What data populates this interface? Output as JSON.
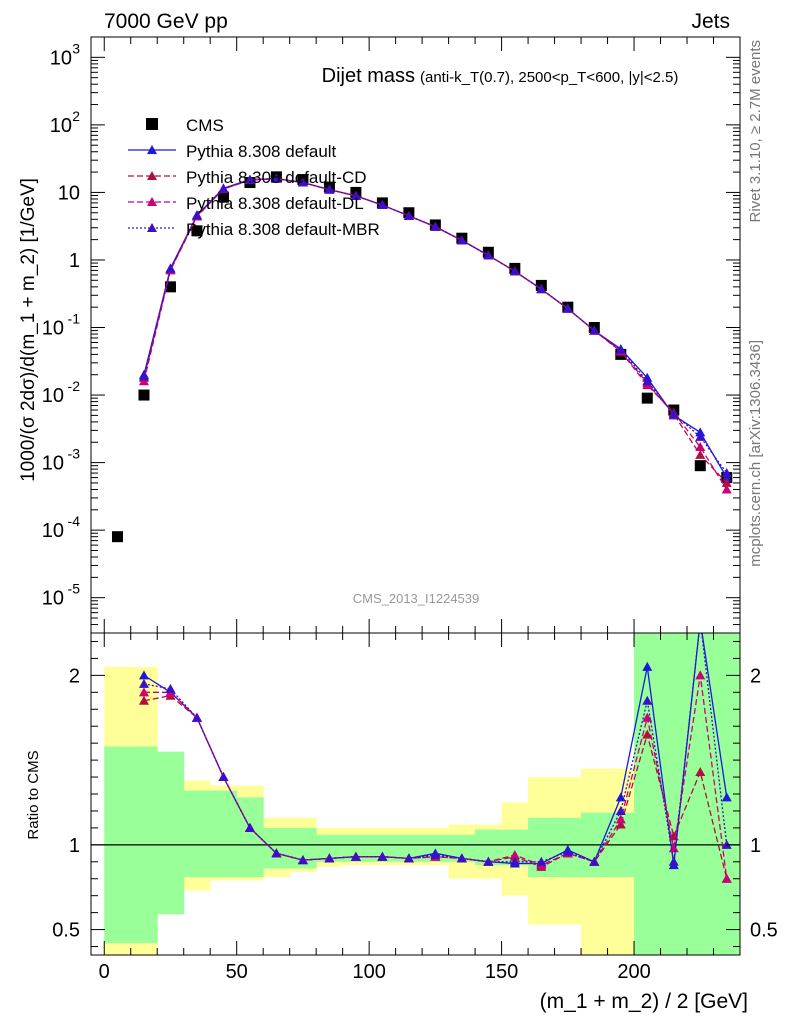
{
  "header": {
    "left": "7000 GeV pp",
    "right": "Jets"
  },
  "side_labels": {
    "rivet": "Rivet 3.1.10, ≥ 2.7M events",
    "mcplots": "mcplots.cern.ch [arXiv:1306.3436]"
  },
  "colors": {
    "cms": "#000000",
    "pythia_default": "#1a1adb",
    "pythia_cd": "#b0103c",
    "pythia_dl": "#cc0077",
    "pythia_mbr": "#3a10c8",
    "band_inner": "#99ff99",
    "band_outer": "#ffff99"
  },
  "chart_data": [
    {
      "type": "scatter",
      "title": "Dijet mass",
      "subtitle": "(anti-k_T(0.7), 2500<p_T<600, |y|<2.5)",
      "ylabel": "1000/(σ 2dσ)/d(m_1 + m_2) [1/GeV]",
      "watermark": "CMS_2013_I1224539",
      "yscale": "log",
      "ylim": [
        3e-06,
        2000
      ],
      "xlim": [
        -5,
        240
      ],
      "legend_position": "top-left",
      "yticks": [
        {
          "v": 1e-05,
          "base": "10",
          "exp": "-5"
        },
        {
          "v": 0.0001,
          "base": "10",
          "exp": "-4"
        },
        {
          "v": 0.001,
          "base": "10",
          "exp": "-3"
        },
        {
          "v": 0.01,
          "base": "10",
          "exp": "-2"
        },
        {
          "v": 0.1,
          "base": "10",
          "exp": "-1"
        },
        {
          "v": 1,
          "base": "1",
          "exp": ""
        },
        {
          "v": 10,
          "base": "10",
          "exp": ""
        },
        {
          "v": 100,
          "base": "10",
          "exp": "2"
        },
        {
          "v": 1000,
          "base": "10",
          "exp": "3"
        }
      ],
      "series": [
        {
          "name": "CMS",
          "style": "data",
          "x": [
            5,
            15,
            25,
            35,
            45,
            55,
            65,
            75,
            85,
            95,
            105,
            115,
            125,
            135,
            145,
            155,
            165,
            175,
            185,
            195,
            205,
            215,
            225,
            235
          ],
          "y": [
            8e-05,
            0.01,
            0.4,
            2.7,
            8.5,
            14,
            17,
            15.5,
            12,
            10,
            7,
            5,
            3.3,
            2.1,
            1.3,
            0.75,
            0.42,
            0.2,
            0.1,
            0.04,
            0.009,
            0.006,
            0.0009,
            0.0006
          ]
        },
        {
          "name": "Pythia 8.308 default",
          "style": "solid",
          "color": "#1a1adb",
          "x": [
            15,
            25,
            35,
            45,
            55,
            65,
            75,
            85,
            95,
            105,
            115,
            125,
            135,
            145,
            155,
            165,
            175,
            185,
            195,
            205,
            215,
            225,
            235
          ],
          "y": [
            0.02,
            0.75,
            4.6,
            11.5,
            15.5,
            16,
            14,
            11,
            8.9,
            6.5,
            4.5,
            3.1,
            1.95,
            1.17,
            0.68,
            0.37,
            0.19,
            0.09,
            0.048,
            0.018,
            0.005,
            0.0028,
            0.0006
          ]
        },
        {
          "name": "Pythia 8.308 default-CD",
          "style": "dashed",
          "color": "#b0103c",
          "x": [
            15,
            25,
            35,
            45,
            55,
            65,
            75,
            85,
            95,
            105,
            115,
            125,
            135,
            145,
            155,
            165,
            175,
            185,
            195,
            205,
            215,
            225,
            235
          ],
          "y": [
            0.018,
            0.72,
            4.5,
            11.3,
            15.3,
            16,
            14,
            11,
            8.9,
            6.5,
            4.5,
            3.1,
            1.95,
            1.17,
            0.68,
            0.37,
            0.19,
            0.09,
            0.045,
            0.015,
            0.0052,
            0.0013,
            0.0005
          ]
        },
        {
          "name": "Pythia 8.308 default-DL",
          "style": "dashed",
          "color": "#cc0077",
          "x": [
            15,
            25,
            35,
            45,
            55,
            65,
            75,
            85,
            95,
            105,
            115,
            125,
            135,
            145,
            155,
            165,
            175,
            185,
            195,
            205,
            215,
            225,
            235
          ],
          "y": [
            0.016,
            0.7,
            4.4,
            11.2,
            15.2,
            16,
            14,
            11,
            8.9,
            6.5,
            4.5,
            3.1,
            1.95,
            1.17,
            0.68,
            0.37,
            0.19,
            0.09,
            0.044,
            0.014,
            0.0055,
            0.0017,
            0.0004
          ]
        },
        {
          "name": "Pythia 8.308 default-MBR",
          "style": "dotted",
          "color": "#3a10c8",
          "x": [
            15,
            25,
            35,
            45,
            55,
            65,
            75,
            85,
            95,
            105,
            115,
            125,
            135,
            145,
            155,
            165,
            175,
            185,
            195,
            205,
            215,
            225,
            235
          ],
          "y": [
            0.019,
            0.74,
            4.6,
            11.4,
            15.4,
            16,
            14,
            11,
            8.9,
            6.5,
            4.5,
            3.1,
            1.95,
            1.17,
            0.68,
            0.37,
            0.19,
            0.09,
            0.047,
            0.016,
            0.0053,
            0.0024,
            0.0007
          ]
        }
      ]
    },
    {
      "type": "line",
      "ylabel": "Ratio to CMS",
      "xlabel": "(m_1 + m_2) / 2 [GeV]",
      "xlim": [
        -5,
        240
      ],
      "ylim": [
        0.35,
        2.25
      ],
      "yticks": [
        0.5,
        1,
        2
      ],
      "xticks": [
        0,
        50,
        100,
        150,
        200
      ],
      "bands": {
        "bin_edges": [
          0,
          10,
          20,
          30,
          40,
          50,
          60,
          70,
          80,
          90,
          100,
          110,
          120,
          130,
          140,
          150,
          160,
          170,
          180,
          190,
          200,
          210,
          220,
          230,
          240
        ],
        "inner_lo": [
          0.42,
          0.42,
          0.59,
          0.81,
          0.81,
          0.81,
          0.86,
          0.86,
          0.9,
          0.9,
          0.9,
          0.9,
          0.9,
          0.9,
          0.88,
          0.88,
          0.81,
          0.81,
          0.81,
          0.81,
          0.3,
          0.3,
          0.3,
          0.3
        ],
        "inner_hi": [
          1.58,
          1.58,
          1.55,
          1.32,
          1.32,
          1.28,
          1.1,
          1.1,
          1.06,
          1.06,
          1.06,
          1.06,
          1.06,
          1.06,
          1.09,
          1.09,
          1.16,
          1.16,
          1.19,
          1.19,
          2.25,
          2.25,
          2.25,
          2.25
        ],
        "outer_lo": [
          0.3,
          0.3,
          0.73,
          0.73,
          0.79,
          0.79,
          0.81,
          0.84,
          0.87,
          0.88,
          0.88,
          0.88,
          0.88,
          0.8,
          0.8,
          0.7,
          0.53,
          0.53,
          0.35,
          0.35,
          0.3,
          0.3,
          0.3,
          0.3
        ],
        "outer_hi": [
          2.05,
          2.05,
          1.38,
          1.38,
          1.35,
          1.35,
          1.16,
          1.16,
          1.1,
          1.1,
          1.1,
          1.1,
          1.1,
          1.12,
          1.12,
          1.25,
          1.4,
          1.4,
          1.45,
          1.45,
          1.6,
          1.6,
          2.25,
          2.25
        ]
      },
      "series": [
        {
          "name": "Pythia 8.308 default",
          "style": "solid",
          "color": "#1a1adb",
          "x": [
            15,
            25,
            35,
            45,
            55,
            65,
            75,
            85,
            95,
            105,
            115,
            125,
            135,
            145,
            155,
            165,
            175,
            185,
            195,
            205,
            215,
            225,
            235
          ],
          "y": [
            2.0,
            1.9,
            1.75,
            1.4,
            1.1,
            0.95,
            0.91,
            0.92,
            0.93,
            0.93,
            0.92,
            0.95,
            0.92,
            0.9,
            0.89,
            0.89,
            0.97,
            0.9,
            1.28,
            2.05,
            0.88,
            3.1,
            1.28
          ]
        },
        {
          "name": "Pythia 8.308 default-CD",
          "style": "dashed",
          "color": "#b0103c",
          "x": [
            15,
            25,
            35,
            45,
            55,
            65,
            75,
            85,
            95,
            105,
            115,
            125,
            135,
            145,
            155,
            165,
            175,
            185,
            195,
            205,
            215,
            225,
            235
          ],
          "y": [
            1.85,
            1.88,
            1.75,
            1.4,
            1.1,
            0.95,
            0.91,
            0.92,
            0.93,
            0.93,
            0.92,
            0.93,
            0.92,
            0.9,
            0.93,
            0.87,
            0.95,
            0.9,
            1.12,
            1.65,
            1.05,
            1.43,
            0.8
          ]
        },
        {
          "name": "Pythia 8.308 default-DL",
          "style": "dashed",
          "color": "#cc0077",
          "x": [
            15,
            25,
            35,
            45,
            55,
            65,
            75,
            85,
            95,
            105,
            115,
            125,
            135,
            145,
            155,
            165,
            175,
            185,
            195,
            205,
            215,
            225,
            235
          ],
          "y": [
            1.9,
            1.9,
            1.75,
            1.4,
            1.1,
            0.95,
            0.91,
            0.92,
            0.93,
            0.93,
            0.92,
            0.93,
            0.92,
            0.9,
            0.94,
            0.88,
            0.95,
            0.9,
            1.15,
            1.75,
            0.98,
            2.0,
            0.8
          ]
        },
        {
          "name": "Pythia 8.308 default-MBR",
          "style": "dotted",
          "color": "#3a10c8",
          "x": [
            15,
            25,
            35,
            45,
            55,
            65,
            75,
            85,
            95,
            105,
            115,
            125,
            135,
            145,
            155,
            165,
            175,
            185,
            195,
            205,
            215,
            225,
            235
          ],
          "y": [
            1.95,
            1.92,
            1.75,
            1.4,
            1.1,
            0.95,
            0.91,
            0.92,
            0.93,
            0.93,
            0.92,
            0.94,
            0.92,
            0.9,
            0.9,
            0.9,
            0.96,
            0.9,
            1.2,
            1.85,
            0.9,
            2.6,
            1.0
          ]
        }
      ]
    }
  ]
}
